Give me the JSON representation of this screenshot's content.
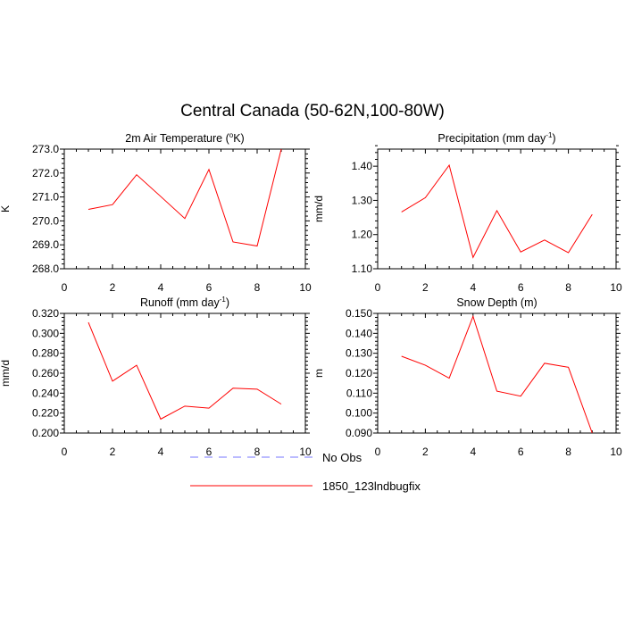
{
  "title": "Central Canada (50-62N,100-80W)",
  "legend": [
    {
      "label": "No Obs",
      "color": "#7777ff",
      "style": "dashed"
    },
    {
      "label": "1850_123lndbugfix",
      "color": "#ff0000",
      "style": "solid"
    }
  ],
  "chart_data": [
    {
      "type": "line",
      "title": "2m Air Temperature (°K)",
      "title_base": "2m Air Temperature (",
      "title_sup": "o",
      "title_end": "K)",
      "ylabel": "K",
      "xlim": [
        0,
        10
      ],
      "ylim": [
        268.0,
        273.0
      ],
      "x_ticks": [
        "0",
        "2",
        "4",
        "6",
        "8",
        "10"
      ],
      "y_ticks": [
        "268.0",
        "269.0",
        "270.0",
        "271.0",
        "272.0",
        "273.0"
      ],
      "series": [
        {
          "name": "1850_123lndbugfix",
          "x": [
            1,
            2,
            3,
            4,
            5,
            6,
            7,
            8,
            9
          ],
          "values": [
            270.48,
            270.68,
            271.93,
            271.02,
            270.1,
            272.15,
            269.12,
            268.95,
            273.0
          ]
        }
      ]
    },
    {
      "type": "line",
      "title": "Precipitation (mm day-1)",
      "title_base": "Precipitation (mm day",
      "title_sup": "-1",
      "title_end": ")",
      "ylabel": "mm/d",
      "xlim": [
        0,
        10
      ],
      "ylim": [
        1.1,
        1.45
      ],
      "x_ticks": [
        "0",
        "2",
        "4",
        "6",
        "8",
        "10"
      ],
      "y_ticks": [
        "1.10",
        "1.20",
        "1.30",
        "1.40"
      ],
      "series": [
        {
          "name": "1850_123lndbugfix",
          "x": [
            1,
            2,
            3,
            4,
            5,
            6,
            7,
            8,
            9
          ],
          "values": [
            1.266,
            1.308,
            1.403,
            1.133,
            1.27,
            1.149,
            1.184,
            1.147,
            1.259
          ]
        }
      ]
    },
    {
      "type": "line",
      "title": "Runoff (mm day-1)",
      "title_base": "Runoff (mm day",
      "title_sup": "-1",
      "title_end": ")",
      "ylabel": "mm/d",
      "xlim": [
        0,
        10
      ],
      "ylim": [
        0.2,
        0.32
      ],
      "x_ticks": [
        "0",
        "2",
        "4",
        "6",
        "8",
        "10"
      ],
      "y_ticks": [
        "0.200",
        "0.220",
        "0.240",
        "0.260",
        "0.280",
        "0.300",
        "0.320"
      ],
      "series": [
        {
          "name": "1850_123lndbugfix",
          "x": [
            1,
            2,
            3,
            4,
            5,
            6,
            7,
            8,
            9
          ],
          "values": [
            0.311,
            0.252,
            0.268,
            0.214,
            0.227,
            0.225,
            0.245,
            0.244,
            0.229
          ]
        }
      ]
    },
    {
      "type": "line",
      "title": "Snow Depth (m)",
      "title_base": "Snow Depth (m)",
      "title_sup": "",
      "title_end": "",
      "ylabel": "m",
      "xlim": [
        0,
        10
      ],
      "ylim": [
        0.09,
        0.15
      ],
      "x_ticks": [
        "0",
        "2",
        "4",
        "6",
        "8",
        "10"
      ],
      "y_ticks": [
        "0.090",
        "0.100",
        "0.110",
        "0.120",
        "0.130",
        "0.140",
        "0.150"
      ],
      "series": [
        {
          "name": "1850_123lndbugfix",
          "x": [
            1,
            2,
            3,
            4,
            5,
            6,
            7,
            8,
            9
          ],
          "values": [
            0.1285,
            0.124,
            0.1175,
            0.1485,
            0.111,
            0.1085,
            0.125,
            0.123,
            0.09
          ]
        }
      ]
    }
  ]
}
